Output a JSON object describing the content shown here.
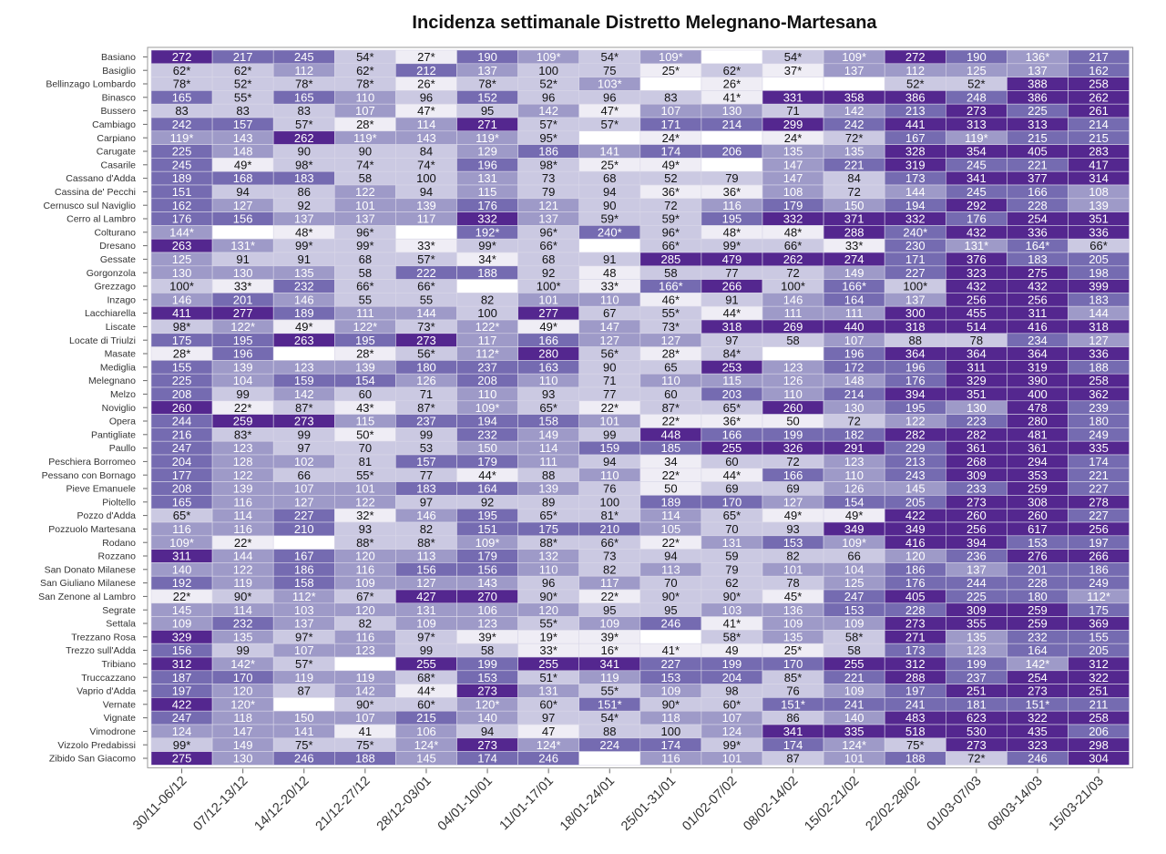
{
  "chart_data": {
    "type": "heatmap",
    "title": "Incidenza settimanale Distretto Melegnano-Martesana",
    "xlabel": "",
    "ylabel": "",
    "columns": [
      "30/11-06/12",
      "07/12-13/12",
      "14/12-20/12",
      "21/12-27/12",
      "28/12-03/01",
      "04/01-10/01",
      "11/01-17/01",
      "18/01-24/01",
      "25/01-31/01",
      "01/02-07/02",
      "08/02-14/02",
      "15/02-21/02",
      "22/02-28/02",
      "01/03-07/03",
      "08/03-14/03",
      "15/03-21/03"
    ],
    "rows": [
      {
        "name": "Basiano",
        "values": [
          "272",
          "217",
          "245",
          "54*",
          "27*",
          "190",
          "109*",
          "54*",
          "109*",
          "",
          "54*",
          "109*",
          "272",
          "190",
          "136*",
          "217"
        ]
      },
      {
        "name": "Basiglio",
        "values": [
          "62*",
          "62*",
          "112",
          "62*",
          "212",
          "137",
          "100",
          "75",
          "25*",
          "62*",
          "37*",
          "137",
          "112",
          "125",
          "137",
          "162"
        ]
      },
      {
        "name": "Bellinzago Lombardo",
        "values": [
          "78*",
          "52*",
          "78*",
          "78*",
          "26*",
          "78*",
          "52*",
          "103*",
          "",
          "26*",
          "",
          "",
          "52*",
          "52*",
          "388",
          "258"
        ]
      },
      {
        "name": "Binasco",
        "values": [
          "165",
          "55*",
          "165",
          "110",
          "96",
          "152",
          "96",
          "96",
          "83",
          "41*",
          "331",
          "358",
          "386",
          "248",
          "386",
          "262"
        ]
      },
      {
        "name": "Bussero",
        "values": [
          "83",
          "83",
          "83",
          "107",
          "47*",
          "95",
          "142",
          "47*",
          "107",
          "130",
          "71",
          "142",
          "213",
          "273",
          "225",
          "261"
        ]
      },
      {
        "name": "Cambiago",
        "values": [
          "242",
          "157",
          "57*",
          "28*",
          "114",
          "271",
          "57*",
          "57*",
          "171",
          "214",
          "299",
          "242",
          "441",
          "313",
          "313",
          "214"
        ]
      },
      {
        "name": "Carpiano",
        "values": [
          "119*",
          "143",
          "262",
          "119*",
          "143",
          "119*",
          "95*",
          "",
          "24*",
          "",
          "24*",
          "72*",
          "167",
          "119*",
          "215",
          "215"
        ]
      },
      {
        "name": "Carugate",
        "values": [
          "225",
          "148",
          "90",
          "90",
          "84",
          "129",
          "186",
          "141",
          "174",
          "206",
          "135",
          "135",
          "328",
          "354",
          "405",
          "283"
        ]
      },
      {
        "name": "Casarile",
        "values": [
          "245",
          "49*",
          "98*",
          "74*",
          "74*",
          "196",
          "98*",
          "25*",
          "49*",
          "",
          "147",
          "221",
          "319",
          "245",
          "221",
          "417"
        ]
      },
      {
        "name": "Cassano d'Adda",
        "values": [
          "189",
          "168",
          "183",
          "58",
          "100",
          "131",
          "73",
          "68",
          "52",
          "79",
          "147",
          "84",
          "173",
          "341",
          "377",
          "314"
        ]
      },
      {
        "name": "Cassina de' Pecchi",
        "values": [
          "151",
          "94",
          "86",
          "122",
          "94",
          "115",
          "79",
          "94",
          "36*",
          "36*",
          "108",
          "72",
          "144",
          "245",
          "166",
          "108"
        ]
      },
      {
        "name": "Cernusco sul Naviglio",
        "values": [
          "162",
          "127",
          "92",
          "101",
          "139",
          "176",
          "121",
          "90",
          "72",
          "116",
          "179",
          "150",
          "194",
          "292",
          "228",
          "139"
        ]
      },
      {
        "name": "Cerro al Lambro",
        "values": [
          "176",
          "156",
          "137",
          "137",
          "117",
          "332",
          "137",
          "59*",
          "59*",
          "195",
          "332",
          "371",
          "332",
          "176",
          "254",
          "351"
        ]
      },
      {
        "name": "Colturano",
        "values": [
          "144*",
          "",
          "48*",
          "96*",
          "",
          "192*",
          "96*",
          "240*",
          "96*",
          "48*",
          "48*",
          "288",
          "240*",
          "432",
          "336",
          "336"
        ]
      },
      {
        "name": "Dresano",
        "values": [
          "263",
          "131*",
          "99*",
          "99*",
          "33*",
          "99*",
          "66*",
          "",
          "66*",
          "99*",
          "66*",
          "33*",
          "230",
          "131*",
          "164*",
          "66*"
        ]
      },
      {
        "name": "Gessate",
        "values": [
          "125",
          "91",
          "91",
          "68",
          "57*",
          "34*",
          "68",
          "91",
          "285",
          "479",
          "262",
          "274",
          "171",
          "376",
          "183",
          "205"
        ]
      },
      {
        "name": "Gorgonzola",
        "values": [
          "130",
          "130",
          "135",
          "58",
          "222",
          "188",
          "92",
          "48",
          "58",
          "77",
          "72",
          "149",
          "227",
          "323",
          "275",
          "198"
        ]
      },
      {
        "name": "Grezzago",
        "values": [
          "100*",
          "33*",
          "232",
          "66*",
          "66*",
          "",
          "100*",
          "33*",
          "166*",
          "266",
          "100*",
          "166*",
          "100*",
          "432",
          "432",
          "399"
        ]
      },
      {
        "name": "Inzago",
        "values": [
          "146",
          "201",
          "146",
          "55",
          "55",
          "82",
          "101",
          "110",
          "46*",
          "91",
          "146",
          "164",
          "137",
          "256",
          "256",
          "183"
        ]
      },
      {
        "name": "Lacchiarella",
        "values": [
          "411",
          "277",
          "189",
          "111",
          "144",
          "100",
          "277",
          "67",
          "55*",
          "44*",
          "111",
          "111",
          "300",
          "455",
          "311",
          "144"
        ]
      },
      {
        "name": "Liscate",
        "values": [
          "98*",
          "122*",
          "49*",
          "122*",
          "73*",
          "122*",
          "49*",
          "147",
          "73*",
          "318",
          "269",
          "440",
          "318",
          "514",
          "416",
          "318"
        ]
      },
      {
        "name": "Locate di Triulzi",
        "values": [
          "175",
          "195",
          "263",
          "195",
          "273",
          "117",
          "166",
          "127",
          "127",
          "97",
          "58",
          "107",
          "88",
          "78",
          "234",
          "127"
        ]
      },
      {
        "name": "Masate",
        "values": [
          "28*",
          "196",
          "",
          "28*",
          "56*",
          "112*",
          "280",
          "56*",
          "28*",
          "84*",
          "",
          "196",
          "364",
          "364",
          "364",
          "336"
        ]
      },
      {
        "name": "Mediglia",
        "values": [
          "155",
          "139",
          "123",
          "139",
          "180",
          "237",
          "163",
          "90",
          "65",
          "253",
          "123",
          "172",
          "196",
          "311",
          "319",
          "188"
        ]
      },
      {
        "name": "Melegnano",
        "values": [
          "225",
          "104",
          "159",
          "154",
          "126",
          "208",
          "110",
          "71",
          "110",
          "115",
          "126",
          "148",
          "176",
          "329",
          "390",
          "258"
        ]
      },
      {
        "name": "Melzo",
        "values": [
          "208",
          "99",
          "142",
          "60",
          "71",
          "110",
          "93",
          "77",
          "60",
          "203",
          "110",
          "214",
          "394",
          "351",
          "400",
          "362"
        ]
      },
      {
        "name": "Noviglio",
        "values": [
          "260",
          "22*",
          "87*",
          "43*",
          "87*",
          "109*",
          "65*",
          "22*",
          "87*",
          "65*",
          "260",
          "130",
          "195",
          "130",
          "478",
          "239"
        ]
      },
      {
        "name": "Opera",
        "values": [
          "244",
          "259",
          "273",
          "115",
          "237",
          "194",
          "158",
          "101",
          "22*",
          "36*",
          "50",
          "72",
          "122",
          "223",
          "280",
          "180"
        ]
      },
      {
        "name": "Pantigliate",
        "values": [
          "216",
          "83*",
          "99",
          "50*",
          "99",
          "232",
          "149",
          "99",
          "448",
          "166",
          "199",
          "182",
          "282",
          "282",
          "481",
          "249"
        ]
      },
      {
        "name": "Paullo",
        "values": [
          "247",
          "123",
          "97",
          "70",
          "53",
          "150",
          "114",
          "159",
          "185",
          "255",
          "326",
          "291",
          "229",
          "361",
          "361",
          "335"
        ]
      },
      {
        "name": "Peschiera Borromeo",
        "values": [
          "204",
          "128",
          "102",
          "81",
          "157",
          "179",
          "111",
          "94",
          "34",
          "60",
          "72",
          "123",
          "213",
          "268",
          "294",
          "174"
        ]
      },
      {
        "name": "Pessano con Bornago",
        "values": [
          "177",
          "122",
          "66",
          "55*",
          "77",
          "44*",
          "88",
          "110",
          "22*",
          "44*",
          "166",
          "110",
          "243",
          "309",
          "353",
          "221"
        ]
      },
      {
        "name": "Pieve Emanuele",
        "values": [
          "208",
          "139",
          "107",
          "101",
          "183",
          "164",
          "139",
          "76",
          "50",
          "69",
          "69",
          "126",
          "145",
          "233",
          "259",
          "227"
        ]
      },
      {
        "name": "Pioltello",
        "values": [
          "165",
          "116",
          "127",
          "122",
          "97",
          "92",
          "89",
          "100",
          "189",
          "170",
          "127",
          "154",
          "205",
          "273",
          "308",
          "278"
        ]
      },
      {
        "name": "Pozzo d'Adda",
        "values": [
          "65*",
          "114",
          "227",
          "32*",
          "146",
          "195",
          "65*",
          "81*",
          "114",
          "65*",
          "49*",
          "49*",
          "422",
          "260",
          "260",
          "227"
        ]
      },
      {
        "name": "Pozzuolo Martesana",
        "values": [
          "116",
          "116",
          "210",
          "93",
          "82",
          "151",
          "175",
          "210",
          "105",
          "70",
          "93",
          "349",
          "349",
          "256",
          "617",
          "256"
        ]
      },
      {
        "name": "Rodano",
        "values": [
          "109*",
          "22*",
          "",
          "88*",
          "88*",
          "109*",
          "88*",
          "66*",
          "22*",
          "131",
          "153",
          "109*",
          "416",
          "394",
          "153",
          "197"
        ]
      },
      {
        "name": "Rozzano",
        "values": [
          "311",
          "144",
          "167",
          "120",
          "113",
          "179",
          "132",
          "73",
          "94",
          "59",
          "82",
          "66",
          "120",
          "236",
          "276",
          "266"
        ]
      },
      {
        "name": "San Donato Milanese",
        "values": [
          "140",
          "122",
          "186",
          "116",
          "156",
          "156",
          "110",
          "82",
          "113",
          "79",
          "101",
          "104",
          "186",
          "137",
          "201",
          "186"
        ]
      },
      {
        "name": "San Giuliano Milanese",
        "values": [
          "192",
          "119",
          "158",
          "109",
          "127",
          "143",
          "96",
          "117",
          "70",
          "62",
          "78",
          "125",
          "176",
          "244",
          "228",
          "249"
        ]
      },
      {
        "name": "San Zenone al Lambro",
        "values": [
          "22*",
          "90*",
          "112*",
          "67*",
          "427",
          "270",
          "90*",
          "22*",
          "90*",
          "90*",
          "45*",
          "247",
          "405",
          "225",
          "180",
          "112*"
        ]
      },
      {
        "name": "Segrate",
        "values": [
          "145",
          "114",
          "103",
          "120",
          "131",
          "106",
          "120",
          "95",
          "95",
          "103",
          "136",
          "153",
          "228",
          "309",
          "259",
          "175"
        ]
      },
      {
        "name": "Settala",
        "values": [
          "109",
          "232",
          "137",
          "82",
          "109",
          "123",
          "55*",
          "109",
          "246",
          "41*",
          "109",
          "109",
          "273",
          "355",
          "259",
          "369"
        ]
      },
      {
        "name": "Trezzano Rosa",
        "values": [
          "329",
          "135",
          "97*",
          "116",
          "97*",
          "39*",
          "19*",
          "39*",
          "",
          "58*",
          "135",
          "58*",
          "271",
          "135",
          "232",
          "155"
        ]
      },
      {
        "name": "Trezzo sull'Adda",
        "values": [
          "156",
          "99",
          "107",
          "123",
          "99",
          "58",
          "33*",
          "16*",
          "41*",
          "49",
          "25*",
          "58",
          "173",
          "123",
          "164",
          "205"
        ]
      },
      {
        "name": "Tribiano",
        "values": [
          "312",
          "142*",
          "57*",
          "",
          "255",
          "199",
          "255",
          "341",
          "227",
          "199",
          "170",
          "255",
          "312",
          "199",
          "142*",
          "312"
        ]
      },
      {
        "name": "Truccazzano",
        "values": [
          "187",
          "170",
          "119",
          "119",
          "68*",
          "153",
          "51*",
          "119",
          "153",
          "204",
          "85*",
          "221",
          "288",
          "237",
          "254",
          "322"
        ]
      },
      {
        "name": "Vaprio d'Adda",
        "values": [
          "197",
          "120",
          "87",
          "142",
          "44*",
          "273",
          "131",
          "55*",
          "109",
          "98",
          "76",
          "109",
          "197",
          "251",
          "273",
          "251"
        ]
      },
      {
        "name": "Vernate",
        "values": [
          "422",
          "120*",
          "",
          "90*",
          "60*",
          "120*",
          "60*",
          "151*",
          "90*",
          "60*",
          "151*",
          "241",
          "241",
          "181",
          "151*",
          "211"
        ]
      },
      {
        "name": "Vignate",
        "values": [
          "247",
          "118",
          "150",
          "107",
          "215",
          "140",
          "97",
          "54*",
          "118",
          "107",
          "86",
          "140",
          "483",
          "623",
          "322",
          "258"
        ]
      },
      {
        "name": "Vimodrone",
        "values": [
          "124",
          "147",
          "141",
          "41",
          "106",
          "94",
          "47",
          "88",
          "100",
          "124",
          "341",
          "335",
          "518",
          "530",
          "435",
          "206"
        ]
      },
      {
        "name": "Vizzolo Predabissi",
        "values": [
          "99*",
          "149",
          "75*",
          "75*",
          "124*",
          "273",
          "124*",
          "224",
          "174",
          "99*",
          "174",
          "124*",
          "75*",
          "273",
          "323",
          "298"
        ]
      },
      {
        "name": "Zibido San Giacomo",
        "values": [
          "275",
          "130",
          "246",
          "188",
          "145",
          "174",
          "246",
          "",
          "116",
          "101",
          "87",
          "101",
          "188",
          "72*",
          "246",
          "304"
        ]
      }
    ],
    "color_scale": {
      "empty": "#ffffff",
      "bins": [
        {
          "max": 50,
          "color": "#efedf5"
        },
        {
          "max": 100,
          "color": "#cbc9e2"
        },
        {
          "max": 150,
          "color": "#9e9ac8"
        },
        {
          "max": 250,
          "color": "#756bb1"
        },
        {
          "max": 100000,
          "color": "#54278f"
        }
      ],
      "dark_text": "#111111",
      "light_text": "#ffffff"
    }
  }
}
